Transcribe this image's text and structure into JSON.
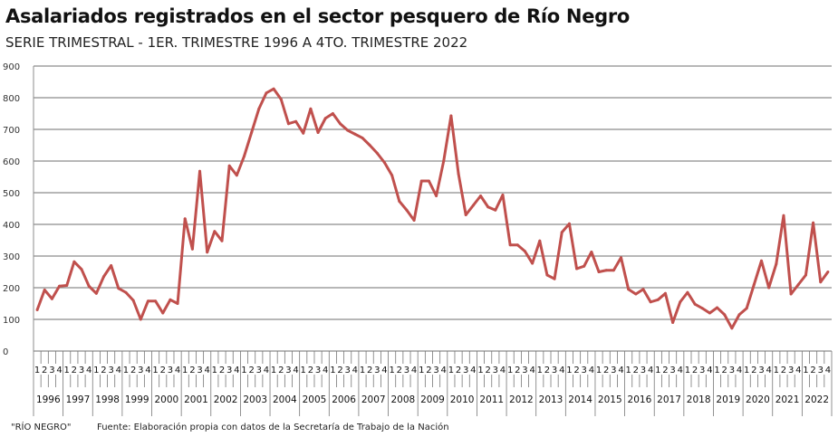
{
  "chart_data": {
    "type": "line",
    "title": "Asalariados registrados  en el sector pesquero de Río Negro",
    "subtitle": "SERIE TRIMESTRAL - 1ER. TRIMESTRE 1996 A 4TO. TRIMESTRE 2022",
    "xlabel": "",
    "ylabel": "",
    "ylim": [
      0,
      900
    ],
    "yticks": [
      0,
      100,
      200,
      300,
      400,
      500,
      600,
      700,
      800,
      900
    ],
    "grid": true,
    "quarter_labels": [
      "1",
      "2",
      "3",
      "4"
    ],
    "years": [
      "1996",
      "1997",
      "1998",
      "1999",
      "2000",
      "2001",
      "2002",
      "2003",
      "2004",
      "2005",
      "2006",
      "2007",
      "2008",
      "2009",
      "2010",
      "2011",
      "2012",
      "2013",
      "2014",
      "2015",
      "2016",
      "2017",
      "2018",
      "2019",
      "2020",
      "2021",
      "2022"
    ],
    "series": [
      {
        "name": "Asalariados registrados",
        "color": "#c0504d",
        "values": [
          130,
          193,
          165,
          205,
          207,
          282,
          258,
          205,
          182,
          235,
          270,
          198,
          185,
          160,
          100,
          158,
          158,
          120,
          162,
          150,
          418,
          322,
          568,
          312,
          378,
          348,
          585,
          555,
          615,
          690,
          765,
          815,
          828,
          795,
          718,
          725,
          688,
          765,
          690,
          735,
          750,
          718,
          697,
          685,
          673,
          650,
          625,
          595,
          555,
          473,
          445,
          413,
          537,
          537,
          490,
          600,
          743,
          560,
          430,
          460,
          490,
          455,
          445,
          493,
          335,
          335,
          315,
          277,
          348,
          240,
          228,
          375,
          402,
          260,
          268,
          313,
          250,
          255,
          255,
          295,
          195,
          180,
          195,
          155,
          162,
          182,
          90,
          155,
          185,
          148,
          135,
          120,
          137,
          115,
          72,
          115,
          135,
          210,
          285,
          200,
          275,
          428,
          180,
          210,
          240,
          405,
          218,
          250
        ]
      }
    ]
  },
  "footer": {
    "label": "\"RÍO NEGRO\"",
    "source": "Fuente: Elaboración propia con datos de la Secretaría de Trabajo de la Nación"
  }
}
